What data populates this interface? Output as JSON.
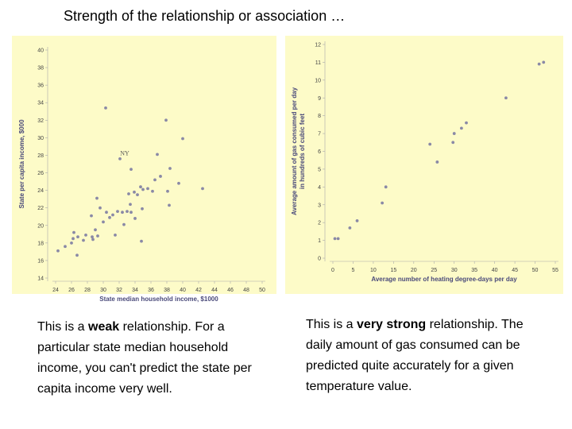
{
  "title": "Strength of the relationship or association …",
  "charts": [
    {
      "chart_data": {
        "type": "scatter",
        "xlabel": "State median household income, $1000",
        "ylabel": "State per capita income, $000",
        "xlim": [
          24,
          50
        ],
        "ylim": [
          14,
          40
        ],
        "xticks": [
          "24",
          "26",
          "28",
          "30",
          "32",
          "34",
          "36",
          "38",
          "40",
          "42",
          "44",
          "46",
          "48",
          "50"
        ],
        "yticks": [
          "14",
          "16",
          "18",
          "20",
          "22",
          "24",
          "26",
          "28",
          "30",
          "32",
          "34",
          "36",
          "38",
          "40"
        ],
        "grid": false,
        "annotations": [
          {
            "text": "NY",
            "x": 32.7,
            "y": 28.0
          }
        ],
        "points": [
          [
            24.3,
            17.1
          ],
          [
            25.2,
            17.6
          ],
          [
            26.0,
            18.0
          ],
          [
            26.2,
            18.5
          ],
          [
            26.3,
            19.2
          ],
          [
            26.7,
            16.6
          ],
          [
            26.8,
            18.7
          ],
          [
            27.5,
            18.3
          ],
          [
            27.8,
            18.9
          ],
          [
            28.5,
            21.1
          ],
          [
            28.6,
            18.7
          ],
          [
            28.7,
            18.4
          ],
          [
            29.0,
            19.5
          ],
          [
            29.2,
            23.1
          ],
          [
            29.3,
            18.8
          ],
          [
            29.6,
            22.0
          ],
          [
            30.0,
            20.4
          ],
          [
            30.3,
            33.4
          ],
          [
            30.4,
            21.5
          ],
          [
            30.8,
            20.9
          ],
          [
            31.2,
            21.2
          ],
          [
            31.5,
            18.9
          ],
          [
            31.8,
            21.6
          ],
          [
            32.1,
            27.6
          ],
          [
            32.4,
            21.5
          ],
          [
            32.6,
            20.1
          ],
          [
            33.0,
            21.6
          ],
          [
            33.2,
            23.6
          ],
          [
            33.4,
            22.4
          ],
          [
            33.5,
            21.5
          ],
          [
            33.5,
            26.4
          ],
          [
            33.9,
            23.8
          ],
          [
            34.0,
            20.8
          ],
          [
            34.3,
            23.5
          ],
          [
            34.7,
            24.4
          ],
          [
            34.8,
            18.2
          ],
          [
            34.9,
            21.9
          ],
          [
            35.0,
            24.1
          ],
          [
            35.6,
            24.2
          ],
          [
            36.2,
            23.9
          ],
          [
            36.5,
            25.2
          ],
          [
            36.8,
            28.1
          ],
          [
            37.2,
            25.6
          ],
          [
            37.9,
            32.0
          ],
          [
            38.1,
            23.9
          ],
          [
            38.4,
            26.5
          ],
          [
            38.3,
            22.3
          ],
          [
            39.5,
            24.8
          ],
          [
            40.0,
            29.9
          ],
          [
            42.5,
            24.2
          ]
        ]
      }
    },
    {
      "chart_data": {
        "type": "scatter",
        "xlabel": "Average number of heating degree-days per day",
        "ylabel": "Average amount of gas consumed per day in hundreds of cubic feet",
        "xlim": [
          0,
          55
        ],
        "ylim": [
          0,
          12
        ],
        "xticks": [
          "0",
          "5",
          "10",
          "15",
          "20",
          "25",
          "30",
          "35",
          "40",
          "45",
          "50",
          "55"
        ],
        "yticks": [
          "0",
          "1",
          "2",
          "3",
          "4",
          "5",
          "6",
          "7",
          "8",
          "9",
          "10",
          "11",
          "12"
        ],
        "grid": false,
        "points": [
          [
            0.5,
            1.1
          ],
          [
            1.3,
            1.1
          ],
          [
            4.2,
            1.7
          ],
          [
            6.0,
            2.1
          ],
          [
            12.2,
            3.1
          ],
          [
            13.1,
            4.0
          ],
          [
            24.0,
            6.4
          ],
          [
            25.8,
            5.4
          ],
          [
            29.7,
            6.5
          ],
          [
            30.0,
            7.0
          ],
          [
            31.8,
            7.3
          ],
          [
            33.0,
            7.6
          ],
          [
            42.8,
            9.0
          ],
          [
            51.0,
            10.9
          ],
          [
            52.1,
            11.0
          ]
        ]
      }
    }
  ],
  "captions": {
    "left": {
      "pre": "This is a ",
      "bold": "weak",
      "post": " relationship. For a particular state median household income, you can't predict the state per capita income very well."
    },
    "right": {
      "pre": "This is a ",
      "bold": "very strong",
      "post": " relationship. The daily amount of gas consumed can be predicted quite accurately for a given temperature value."
    }
  },
  "colors": {
    "panel_bg": "#fdfbc8",
    "point": "#8a89a6",
    "axis_label": "#4a4a7a"
  }
}
